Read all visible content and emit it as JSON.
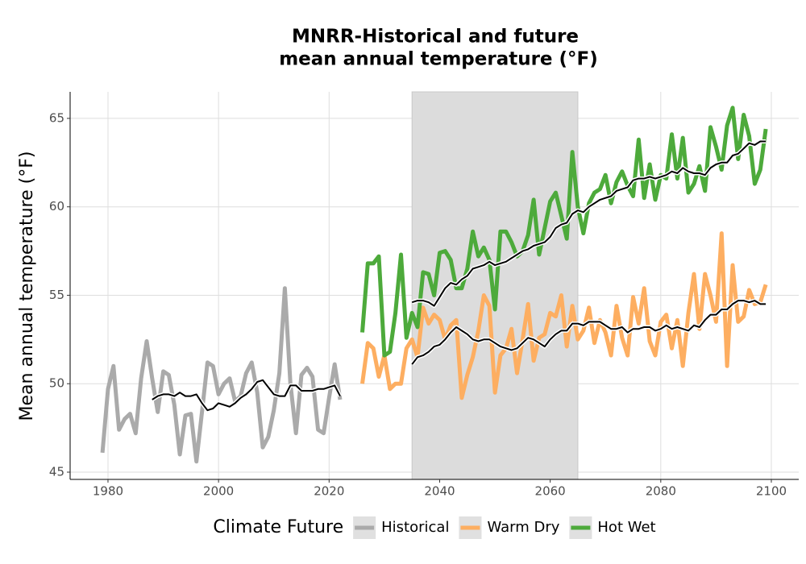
{
  "chart_data": {
    "type": "line",
    "title": [
      "MNRR-Historical and future",
      "mean annual temperature (°F)"
    ],
    "y_label": "Mean annual temperature (°F)",
    "legend_title": "Climate Future",
    "legend_position": "bottom",
    "grid": true,
    "xlim": [
      1973.15,
      2104.96
    ],
    "ylim": [
      44.59,
      66.5
    ],
    "xticks": [
      1980,
      2000,
      2020,
      2040,
      2060,
      2080,
      2100
    ],
    "yticks": [
      45,
      50,
      55,
      60,
      65
    ],
    "shade": {
      "x": [
        2035,
        2065
      ],
      "color": "#dcdcdc"
    },
    "series": [
      {
        "name": "Historical",
        "color": "#aaaaaa",
        "x": [
          1979,
          1980,
          1981,
          1982,
          1983,
          1984,
          1985,
          1986,
          1987,
          1988,
          1989,
          1990,
          1991,
          1992,
          1993,
          1994,
          1995,
          1996,
          1997,
          1998,
          1999,
          2000,
          2001,
          2002,
          2003,
          2004,
          2005,
          2006,
          2007,
          2008,
          2009,
          2010,
          2011,
          2012,
          2013,
          2014,
          2015,
          2016,
          2017,
          2018,
          2019,
          2020,
          2021,
          2022
        ],
        "values": [
          46.1,
          49.7,
          51.0,
          47.4,
          48.0,
          48.3,
          47.2,
          50.3,
          52.4,
          50.3,
          48.4,
          50.7,
          50.5,
          48.8,
          46.0,
          48.2,
          48.3,
          45.6,
          48.4,
          51.2,
          51.0,
          49.4,
          50.0,
          50.3,
          49.0,
          49.3,
          50.6,
          51.2,
          49.5,
          46.4,
          47.0,
          48.5,
          50.6,
          55.4,
          50.0,
          47.2,
          50.5,
          50.9,
          50.4,
          47.4,
          47.2,
          49.2,
          51.1,
          49.1
        ],
        "smooth": {
          "color": "#000000",
          "x": [
            1988,
            1989,
            1990,
            1991,
            1992,
            1993,
            1994,
            1995,
            1996,
            1997,
            1998,
            1999,
            2000,
            2001,
            2002,
            2003,
            2004,
            2005,
            2006,
            2007,
            2008,
            2009,
            2010,
            2011,
            2012,
            2013,
            2014,
            2015,
            2016,
            2017,
            2018,
            2019,
            2020,
            2021,
            2022
          ],
          "values": [
            49.1,
            49.3,
            49.4,
            49.4,
            49.3,
            49.5,
            49.3,
            49.3,
            49.4,
            48.9,
            48.5,
            48.6,
            48.9,
            48.8,
            48.7,
            48.9,
            49.2,
            49.4,
            49.7,
            50.1,
            50.2,
            49.8,
            49.4,
            49.3,
            49.3,
            49.9,
            49.9,
            49.6,
            49.6,
            49.6,
            49.7,
            49.7,
            49.8,
            49.9,
            49.3
          ]
        }
      },
      {
        "name": "Warm Dry",
        "color": "#fdae61",
        "x": [
          2026,
          2027,
          2028,
          2029,
          2030,
          2031,
          2032,
          2033,
          2034,
          2035,
          2036,
          2037,
          2038,
          2039,
          2040,
          2041,
          2042,
          2043,
          2044,
          2045,
          2046,
          2047,
          2048,
          2049,
          2050,
          2051,
          2052,
          2053,
          2054,
          2055,
          2056,
          2057,
          2058,
          2059,
          2060,
          2061,
          2062,
          2063,
          2064,
          2065,
          2066,
          2067,
          2068,
          2069,
          2070,
          2071,
          2072,
          2073,
          2074,
          2075,
          2076,
          2077,
          2078,
          2079,
          2080,
          2081,
          2082,
          2083,
          2084,
          2085,
          2086,
          2087,
          2088,
          2089,
          2090,
          2091,
          2092,
          2093,
          2094,
          2095,
          2096,
          2097,
          2098,
          2099
        ],
        "values": [
          50.0,
          52.3,
          52.0,
          50.4,
          51.6,
          49.7,
          50.0,
          50.0,
          52.0,
          52.5,
          51.5,
          54.3,
          53.4,
          53.9,
          53.6,
          52.5,
          53.3,
          53.6,
          49.2,
          50.5,
          51.5,
          53.0,
          55.0,
          54.4,
          49.5,
          51.6,
          52.0,
          53.1,
          50.6,
          52.5,
          54.5,
          51.3,
          52.6,
          52.8,
          54.0,
          53.8,
          55.0,
          52.1,
          54.4,
          52.5,
          53.0,
          54.3,
          52.3,
          53.6,
          52.9,
          51.6,
          54.4,
          52.6,
          51.6,
          54.9,
          53.4,
          55.4,
          52.4,
          51.6,
          53.5,
          53.9,
          52.0,
          53.6,
          51.0,
          54.0,
          56.2,
          53.1,
          56.2,
          55.0,
          53.5,
          58.5,
          51.0,
          56.7,
          53.5,
          53.8,
          55.3,
          54.5,
          54.6,
          55.6
        ],
        "smooth": {
          "color": "#000000",
          "x": [
            2035,
            2036,
            2037,
            2038,
            2039,
            2040,
            2041,
            2042,
            2043,
            2044,
            2045,
            2046,
            2047,
            2048,
            2049,
            2050,
            2051,
            2052,
            2053,
            2054,
            2055,
            2056,
            2057,
            2058,
            2059,
            2060,
            2061,
            2062,
            2063,
            2064,
            2065,
            2066,
            2067,
            2068,
            2069,
            2070,
            2071,
            2072,
            2073,
            2074,
            2075,
            2076,
            2077,
            2078,
            2079,
            2080,
            2081,
            2082,
            2083,
            2084,
            2085,
            2086,
            2087,
            2088,
            2089,
            2090,
            2091,
            2092,
            2093,
            2094,
            2095,
            2096,
            2097,
            2098,
            2099
          ],
          "values": [
            51.1,
            51.5,
            51.6,
            51.8,
            52.1,
            52.2,
            52.5,
            52.9,
            53.2,
            53.0,
            52.8,
            52.5,
            52.4,
            52.5,
            52.5,
            52.3,
            52.1,
            52.0,
            51.9,
            52.0,
            52.3,
            52.6,
            52.5,
            52.3,
            52.1,
            52.5,
            52.8,
            53.0,
            53.0,
            53.4,
            53.4,
            53.3,
            53.5,
            53.5,
            53.5,
            53.3,
            53.1,
            53.1,
            53.2,
            52.9,
            53.1,
            53.1,
            53.2,
            53.2,
            53.0,
            53.1,
            53.3,
            53.1,
            53.2,
            53.1,
            53.0,
            53.3,
            53.2,
            53.6,
            53.9,
            53.9,
            54.2,
            54.2,
            54.5,
            54.7,
            54.7,
            54.6,
            54.7,
            54.5,
            54.5
          ]
        }
      },
      {
        "name": "Hot Wet",
        "color": "#4daa3b",
        "x": [
          2026,
          2027,
          2028,
          2029,
          2030,
          2031,
          2032,
          2033,
          2034,
          2035,
          2036,
          2037,
          2038,
          2039,
          2040,
          2041,
          2042,
          2043,
          2044,
          2045,
          2046,
          2047,
          2048,
          2049,
          2050,
          2051,
          2052,
          2053,
          2054,
          2055,
          2056,
          2057,
          2058,
          2059,
          2060,
          2061,
          2062,
          2063,
          2064,
          2065,
          2066,
          2067,
          2068,
          2069,
          2070,
          2071,
          2072,
          2073,
          2074,
          2075,
          2076,
          2077,
          2078,
          2079,
          2080,
          2081,
          2082,
          2083,
          2084,
          2085,
          2086,
          2087,
          2088,
          2089,
          2090,
          2091,
          2092,
          2093,
          2094,
          2095,
          2096,
          2097,
          2098,
          2099
        ],
        "values": [
          52.9,
          56.8,
          56.8,
          57.2,
          51.6,
          51.8,
          54.0,
          57.3,
          52.6,
          54.0,
          53.2,
          56.3,
          56.2,
          55.0,
          57.4,
          57.5,
          57.0,
          55.4,
          55.4,
          56.5,
          58.6,
          57.2,
          57.7,
          57.0,
          54.2,
          58.6,
          58.6,
          58.0,
          57.2,
          57.5,
          58.4,
          60.4,
          57.3,
          58.8,
          60.3,
          60.8,
          59.5,
          58.2,
          63.1,
          60.0,
          58.5,
          60.2,
          60.8,
          61.0,
          61.8,
          60.2,
          61.4,
          62.0,
          61.2,
          60.6,
          63.8,
          60.5,
          62.4,
          60.4,
          61.8,
          61.6,
          64.1,
          61.6,
          63.9,
          60.8,
          61.3,
          62.3,
          60.9,
          64.5,
          63.4,
          62.1,
          64.6,
          65.6,
          62.7,
          65.2,
          64.0,
          61.3,
          62.1,
          64.4
        ],
        "smooth": {
          "color": "#000000",
          "x": [
            2035,
            2036,
            2037,
            2038,
            2039,
            2040,
            2041,
            2042,
            2043,
            2044,
            2045,
            2046,
            2047,
            2048,
            2049,
            2050,
            2051,
            2052,
            2053,
            2054,
            2055,
            2056,
            2057,
            2058,
            2059,
            2060,
            2061,
            2062,
            2063,
            2064,
            2065,
            2066,
            2067,
            2068,
            2069,
            2070,
            2071,
            2072,
            2073,
            2074,
            2075,
            2076,
            2077,
            2078,
            2079,
            2080,
            2081,
            2082,
            2083,
            2084,
            2085,
            2086,
            2087,
            2088,
            2089,
            2090,
            2091,
            2092,
            2093,
            2094,
            2095,
            2096,
            2097,
            2098,
            2099
          ],
          "values": [
            54.6,
            54.7,
            54.7,
            54.6,
            54.4,
            54.9,
            55.4,
            55.7,
            55.6,
            55.9,
            56.1,
            56.5,
            56.6,
            56.7,
            56.9,
            56.7,
            56.8,
            56.9,
            57.1,
            57.3,
            57.5,
            57.6,
            57.8,
            57.9,
            58.0,
            58.3,
            58.8,
            59.0,
            59.1,
            59.6,
            59.8,
            59.7,
            60.0,
            60.2,
            60.4,
            60.5,
            60.6,
            60.9,
            61.0,
            61.1,
            61.5,
            61.6,
            61.6,
            61.7,
            61.6,
            61.7,
            61.8,
            62.0,
            61.9,
            62.2,
            62.0,
            61.9,
            61.9,
            61.8,
            62.2,
            62.4,
            62.5,
            62.5,
            62.9,
            63.0,
            63.3,
            63.6,
            63.5,
            63.7,
            63.7
          ]
        }
      }
    ]
  }
}
